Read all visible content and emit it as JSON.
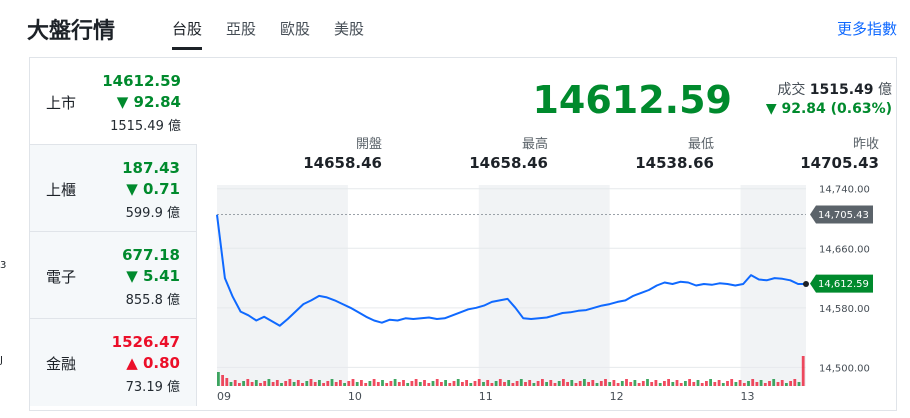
{
  "header": {
    "title": "大盤行情",
    "tabs": [
      {
        "label": "台股",
        "active": true
      },
      {
        "label": "亞股",
        "active": false
      },
      {
        "label": "歐股",
        "active": false
      },
      {
        "label": "美股",
        "active": false
      }
    ],
    "more_link": "更多指數"
  },
  "edge_fragments": [
    "3",
    "J"
  ],
  "sidebar": {
    "items": [
      {
        "name": "上市",
        "price": "14612.59",
        "change": "92.84",
        "direction": "down",
        "volume": "1515.49 億",
        "selected": true
      },
      {
        "name": "上櫃",
        "price": "187.43",
        "change": "0.71",
        "direction": "down",
        "volume": "599.9 億",
        "selected": false
      },
      {
        "name": "電子",
        "price": "677.18",
        "change": "5.41",
        "direction": "down",
        "volume": "855.8 億",
        "selected": false
      },
      {
        "name": "金融",
        "price": "1526.47",
        "change": "0.80",
        "direction": "up",
        "volume": "73.19 億",
        "selected": false
      }
    ]
  },
  "summary": {
    "price": "14612.59",
    "volume_label": "成交",
    "volume_value": "1515.49",
    "volume_unit": "億",
    "change": "▼ 92.84 (0.63%)",
    "stats": [
      {
        "label": "開盤",
        "value": "14658.46"
      },
      {
        "label": "最高",
        "value": "14658.46"
      },
      {
        "label": "最低",
        "value": "14538.66"
      },
      {
        "label": "昨收",
        "value": "14705.43"
      }
    ]
  },
  "colors": {
    "up": "#eb0f29",
    "down": "#008a2d",
    "line": "#0f69ff",
    "accent": "#0f69ff"
  },
  "chart_data": {
    "type": "line",
    "x_labels": [
      "09",
      "10",
      "11",
      "12",
      "13"
    ],
    "y_ticks": [
      "14,740.00",
      "14,660.00",
      "14,580.00",
      "14,500.00"
    ],
    "y_tick_values": [
      14740,
      14660,
      14580,
      14500
    ],
    "ylim": [
      14475,
      14745
    ],
    "reference": {
      "label": "14,705.43",
      "value": 14705.43
    },
    "last": {
      "label": "14,612.59",
      "value": 14612.59
    },
    "series": [
      {
        "values": [
          14705,
          14620,
          14595,
          14575,
          14570,
          14563,
          14568,
          14562,
          14556,
          14565,
          14575,
          14585,
          14590,
          14596,
          14594,
          14590,
          14585,
          14580,
          14574,
          14568,
          14563,
          14560,
          14564,
          14563,
          14566,
          14565,
          14566,
          14567,
          14565,
          14566,
          14570,
          14574,
          14578,
          14580,
          14583,
          14588,
          14590,
          14592,
          14580,
          14566,
          14565,
          14566,
          14567,
          14570,
          14573,
          14574,
          14576,
          14577,
          14580,
          14583,
          14585,
          14588,
          14590,
          14596,
          14600,
          14604,
          14610,
          14614,
          14612,
          14615,
          14614,
          14610,
          14612,
          14611,
          14613,
          14612,
          14610,
          14612,
          14624,
          14618,
          14617,
          14620,
          14619,
          14617,
          14612,
          14612
        ]
      }
    ],
    "volume_bars": 140
  }
}
